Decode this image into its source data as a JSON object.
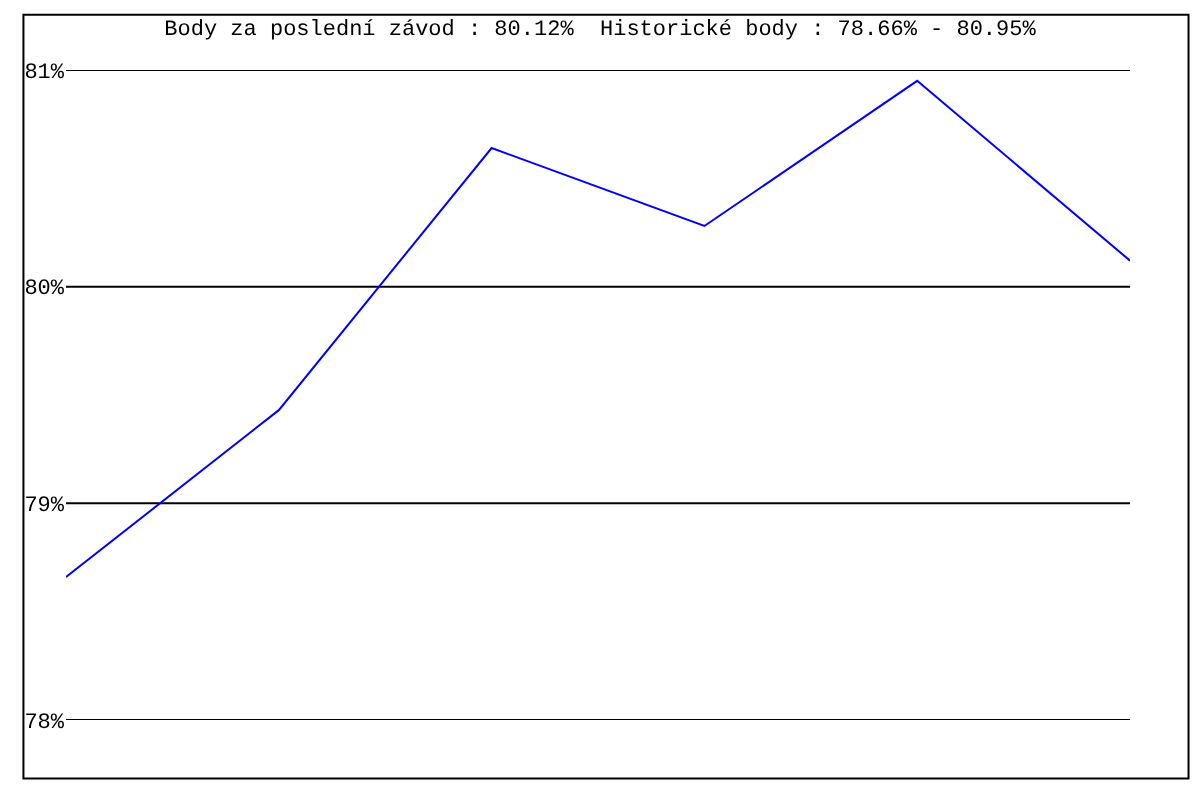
{
  "chart_data": {
    "type": "line",
    "title": "Body za poslední závod : 80.12%  Historické body : 78.66% - 80.95%",
    "categories": [
      null,
      null,
      null,
      null,
      null,
      null
    ],
    "series": [
      {
        "color": "#0000ff",
        "values": [
          78.66,
          79.43,
          80.64,
          80.28,
          80.95,
          80.12
        ]
      }
    ],
    "ylim": [
      78,
      81
    ],
    "yticks": [
      {
        "value": 78,
        "label": "78%"
      },
      {
        "value": 79,
        "label": "79%"
      },
      {
        "value": 80,
        "label": "80%"
      },
      {
        "value": 81,
        "label": "81%"
      }
    ],
    "grid": "y",
    "marker": "none",
    "line_style": "solid"
  }
}
